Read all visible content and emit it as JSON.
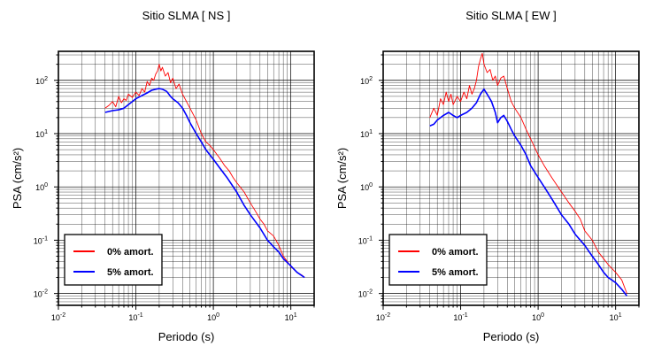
{
  "chart_data": [
    {
      "type": "line",
      "title": "Sitio SLMA [ NS ]",
      "xlabel": "Periodo (s)",
      "ylabel": "PSA (cm/s²)",
      "xscale": "log",
      "yscale": "log",
      "xlim": [
        0.01,
        20
      ],
      "ylim": [
        0.006,
        350
      ],
      "grid": true,
      "legend_position": "bottom-left",
      "xticks": [
        {
          "base": "10",
          "exp": "-2"
        },
        {
          "base": "10",
          "exp": "-1"
        },
        {
          "base": "10",
          "exp": "0"
        },
        {
          "base": "10",
          "exp": "1"
        }
      ],
      "yticks": [
        {
          "base": "10",
          "exp": "-2"
        },
        {
          "base": "10",
          "exp": "-1"
        },
        {
          "base": "10",
          "exp": "0"
        },
        {
          "base": "10",
          "exp": "1"
        },
        {
          "base": "10",
          "exp": "2"
        }
      ],
      "series": [
        {
          "name": "0% amort.",
          "color": "#ff0000",
          "x": [
            0.04,
            0.045,
            0.05,
            0.055,
            0.06,
            0.065,
            0.07,
            0.075,
            0.08,
            0.09,
            0.1,
            0.11,
            0.12,
            0.13,
            0.14,
            0.15,
            0.16,
            0.17,
            0.18,
            0.19,
            0.2,
            0.21,
            0.22,
            0.24,
            0.26,
            0.28,
            0.3,
            0.33,
            0.36,
            0.4,
            0.45,
            0.5,
            0.6,
            0.7,
            0.8,
            0.9,
            1.0,
            1.2,
            1.4,
            1.6,
            1.8,
            2.0,
            2.5,
            3.0,
            3.5,
            4.0,
            4.5,
            5.0,
            6.0,
            7.0,
            8.0,
            9.0,
            10.0,
            12.0,
            14.0,
            15.0
          ],
          "y": [
            30,
            34,
            40,
            32,
            50,
            38,
            45,
            42,
            55,
            48,
            60,
            52,
            70,
            60,
            95,
            80,
            110,
            100,
            130,
            150,
            200,
            150,
            175,
            120,
            140,
            90,
            110,
            70,
            85,
            55,
            40,
            30,
            18,
            10,
            7,
            6,
            5,
            3.5,
            2.5,
            2.0,
            1.5,
            1.2,
            0.8,
            0.5,
            0.35,
            0.25,
            0.2,
            0.15,
            0.12,
            0.08,
            0.05,
            0.04,
            0.032,
            0.025,
            0.022,
            0.02
          ]
        },
        {
          "name": "5% amort.",
          "color": "#0000ff",
          "x": [
            0.04,
            0.05,
            0.06,
            0.07,
            0.08,
            0.09,
            0.1,
            0.12,
            0.14,
            0.16,
            0.18,
            0.2,
            0.22,
            0.25,
            0.28,
            0.3,
            0.35,
            0.4,
            0.45,
            0.5,
            0.6,
            0.7,
            0.8,
            1.0,
            1.2,
            1.5,
            2.0,
            2.5,
            3.0,
            4.0,
            5.0,
            6.0,
            7.0,
            8.0,
            10.0,
            12.0,
            15.0
          ],
          "y": [
            25,
            27,
            28,
            30,
            35,
            40,
            45,
            52,
            58,
            65,
            68,
            70,
            68,
            62,
            50,
            45,
            38,
            30,
            22,
            16,
            10,
            7,
            5,
            3.3,
            2.3,
            1.5,
            0.8,
            0.45,
            0.3,
            0.17,
            0.1,
            0.075,
            0.06,
            0.045,
            0.033,
            0.025,
            0.02
          ]
        }
      ]
    },
    {
      "type": "line",
      "title": "Sitio SLMA [ EW ]",
      "xlabel": "Periodo (s)",
      "ylabel": "PSA (cm/s²)",
      "xscale": "log",
      "yscale": "log",
      "xlim": [
        0.01,
        20
      ],
      "ylim": [
        0.006,
        350
      ],
      "grid": true,
      "legend_position": "bottom-left",
      "xticks": [
        {
          "base": "10",
          "exp": "-2"
        },
        {
          "base": "10",
          "exp": "-1"
        },
        {
          "base": "10",
          "exp": "0"
        },
        {
          "base": "10",
          "exp": "1"
        }
      ],
      "yticks": [
        {
          "base": "10",
          "exp": "-2"
        },
        {
          "base": "10",
          "exp": "-1"
        },
        {
          "base": "10",
          "exp": "0"
        },
        {
          "base": "10",
          "exp": "1"
        },
        {
          "base": "10",
          "exp": "2"
        }
      ],
      "series": [
        {
          "name": "0% amort.",
          "color": "#ff0000",
          "x": [
            0.04,
            0.045,
            0.05,
            0.055,
            0.06,
            0.065,
            0.07,
            0.075,
            0.08,
            0.09,
            0.1,
            0.11,
            0.12,
            0.13,
            0.14,
            0.15,
            0.16,
            0.17,
            0.18,
            0.19,
            0.2,
            0.22,
            0.24,
            0.26,
            0.28,
            0.3,
            0.33,
            0.36,
            0.4,
            0.45,
            0.5,
            0.6,
            0.7,
            0.8,
            1.0,
            1.2,
            1.5,
            2.0,
            2.5,
            3.0,
            3.5,
            4.0,
            5.0,
            6.0,
            7.0,
            8.0,
            10.0,
            12.0,
            14.0
          ],
          "y": [
            20,
            30,
            22,
            45,
            35,
            60,
            40,
            55,
            35,
            50,
            40,
            60,
            45,
            80,
            55,
            70,
            100,
            180,
            250,
            320,
            200,
            140,
            160,
            100,
            120,
            80,
            110,
            120,
            70,
            40,
            30,
            20,
            12,
            8,
            4,
            2.5,
            1.5,
            0.8,
            0.5,
            0.35,
            0.25,
            0.15,
            0.1,
            0.06,
            0.045,
            0.035,
            0.025,
            0.018,
            0.01
          ]
        },
        {
          "name": "5% amort.",
          "color": "#0000ff",
          "x": [
            0.04,
            0.045,
            0.05,
            0.06,
            0.07,
            0.08,
            0.09,
            0.1,
            0.12,
            0.14,
            0.16,
            0.18,
            0.2,
            0.22,
            0.25,
            0.28,
            0.3,
            0.33,
            0.36,
            0.4,
            0.45,
            0.5,
            0.6,
            0.7,
            0.8,
            1.0,
            1.2,
            1.5,
            2.0,
            2.5,
            3.0,
            4.0,
            5.0,
            6.0,
            7.0,
            8.0,
            10.0,
            12.0,
            14.0
          ],
          "y": [
            14,
            15,
            18,
            22,
            25,
            22,
            20,
            22,
            25,
            30,
            38,
            55,
            68,
            55,
            40,
            25,
            16,
            20,
            22,
            17,
            12,
            9,
            6,
            4,
            2.5,
            1.5,
            1.0,
            0.6,
            0.3,
            0.2,
            0.13,
            0.08,
            0.05,
            0.035,
            0.025,
            0.02,
            0.016,
            0.012,
            0.009
          ]
        }
      ]
    }
  ]
}
